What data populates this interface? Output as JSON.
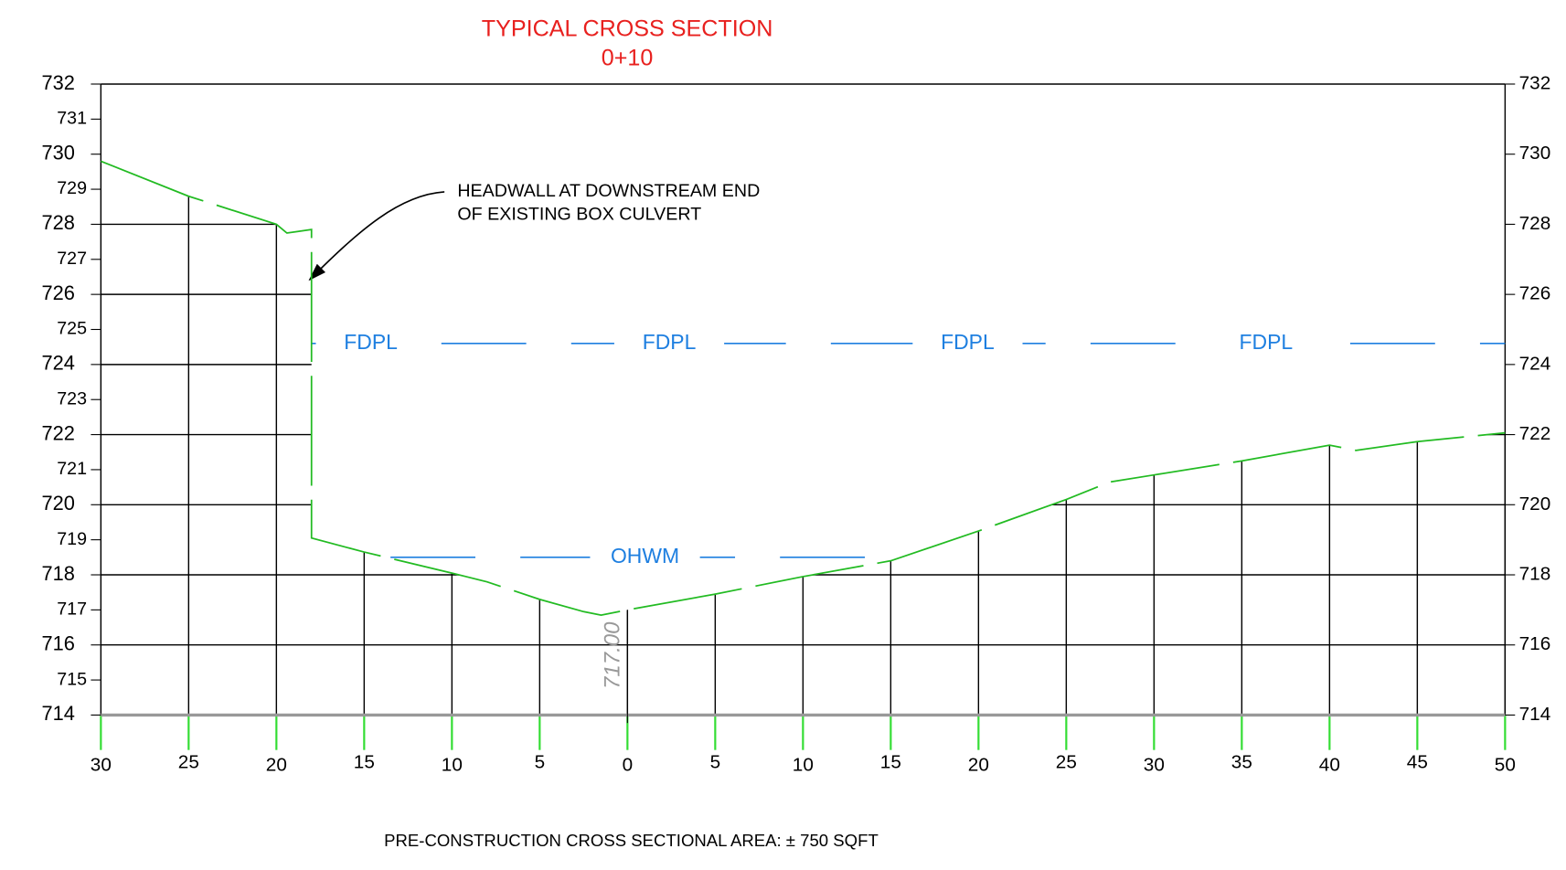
{
  "chart_data": {
    "type": "line",
    "title": "TYPICAL CROSS SECTION",
    "subtitle": "0+10",
    "callout": [
      "HEADWALL AT DOWNSTREAM END",
      "OF EXISTING BOX CULVERT"
    ],
    "footer": "PRE-CONSTRUCTION CROSS SECTIONAL AREA: ± 750 SQFT",
    "x": [
      -30,
      -25,
      -20,
      -19.4,
      -18,
      -18,
      -15,
      -10,
      -8,
      -5,
      -2.5,
      -1.5,
      0,
      5,
      10,
      15,
      20,
      25,
      27.5,
      30,
      35,
      40,
      41.5,
      45,
      50
    ],
    "series": [
      {
        "name": "ground",
        "color": "#22bb22",
        "values": [
          729.8,
          728.8,
          728.0,
          727.75,
          727.85,
          719.05,
          718.65,
          718.05,
          717.8,
          717.3,
          716.95,
          716.85,
          717.0,
          717.45,
          717.95,
          718.4,
          719.25,
          720.15,
          720.65,
          720.85,
          721.25,
          721.7,
          721.55,
          721.8,
          722.05
        ]
      }
    ],
    "fdpl": {
      "label": "FDPL",
      "value": 724.6,
      "x": [
        -18,
        50
      ],
      "color": "#1e7fe0"
    },
    "ohwm": {
      "label": "OHWM",
      "value": 718.5,
      "x": [
        -13.5,
        15.5
      ],
      "color": "#1e7fe0"
    },
    "elevation_label": {
      "value": 717,
      "label": "717.00"
    },
    "xlim": [
      -30,
      50
    ],
    "xticks": [
      {
        "value": -30,
        "label": "30"
      },
      {
        "value": -25,
        "label": "25"
      },
      {
        "value": -20,
        "label": "20"
      },
      {
        "value": -15,
        "label": "15"
      },
      {
        "value": -10,
        "label": "10"
      },
      {
        "value": -5,
        "label": "5"
      },
      0,
      5,
      10,
      15,
      20,
      25,
      30,
      35,
      40,
      45,
      50
    ],
    "ylim": [
      714,
      732
    ],
    "yticks": [
      714,
      715,
      716,
      717,
      718,
      719,
      720,
      721,
      722,
      723,
      724,
      725,
      726,
      727,
      728,
      729,
      730,
      731,
      732
    ],
    "y2lim": [
      714,
      732
    ],
    "y2ticks": [
      714,
      716,
      718,
      720,
      722,
      724,
      726,
      728,
      730,
      732
    ],
    "grid": true
  }
}
